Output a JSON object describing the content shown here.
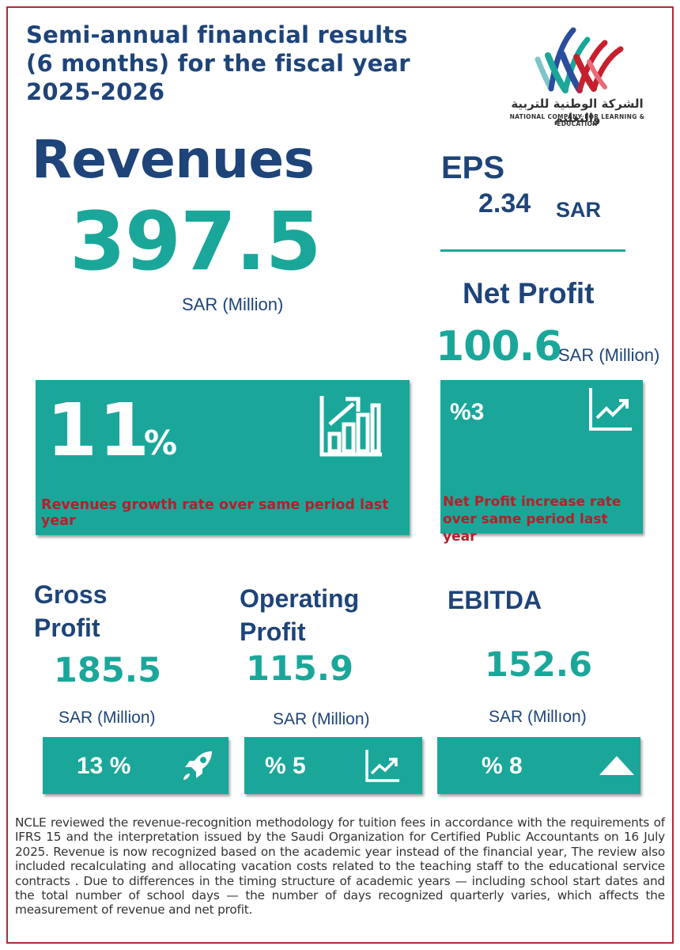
{
  "header": {
    "title_lines": [
      "Semi-annual financial results",
      "(6 months) for the fiscal year",
      "2025-2026"
    ]
  },
  "logo": {
    "arabic_name": "الشركة الوطنية للتربية والتعليم",
    "english_name": "NATIONAL COMPANY FOR LEARNING & EDUCATION"
  },
  "revenues": {
    "label": "Revenues",
    "value": "397.5",
    "unit": "SAR (Million)",
    "growth": {
      "number": "11",
      "percent_sign": "%",
      "caption": "Revenues growth rate over same period last year",
      "icon": "bar-chart-growth-icon"
    }
  },
  "eps": {
    "label": "EPS",
    "value": "2.34",
    "unit": "SAR"
  },
  "net_profit": {
    "label": "Net Profit",
    "value": "100.6",
    "unit": "SAR (Million)",
    "increase": {
      "text": "%3",
      "caption_lines": [
        "Net Profit increase rate",
        "over same period last year"
      ],
      "icon": "line-chart-up-icon"
    }
  },
  "metrics": [
    {
      "label_lines": [
        "Gross",
        "Profit"
      ],
      "value": "185.5",
      "unit": "SAR (Million)",
      "change": "13 %",
      "icon": "rocket-icon"
    },
    {
      "label_lines": [
        "Operating",
        "Profit"
      ],
      "value": "115.9",
      "unit": "SAR (Million)",
      "change": "% 5",
      "icon": "line-chart-up-icon"
    },
    {
      "label_lines": [
        "EBITDA"
      ],
      "value": "152.6",
      "unit": "SAR (Millıon)",
      "change": "% 8",
      "icon": "triangle-up-icon"
    }
  ],
  "footnote": "NCLE reviewed the revenue-recognition methodology for tuition fees in accordance with the requirements of IFRS 15 and the interpretation issued by the Saudi Organization for Certified Public Accountants on 16 July 2025. Revenue is now recognized based on the academic year instead of the financial year, The review also included recalculating and allocating vacation costs related to the teaching staff to the educational service contracts . Due to differences in the timing structure of academic years — including school start dates and the total number of school days — the number of days recognized quarterly varies, which affects the measurement of revenue and net profit.",
  "colors": {
    "navy": "#1e4479",
    "teal": "#1aa79a",
    "caption_red": "#b3202a",
    "frame_red": "#b02a37"
  }
}
